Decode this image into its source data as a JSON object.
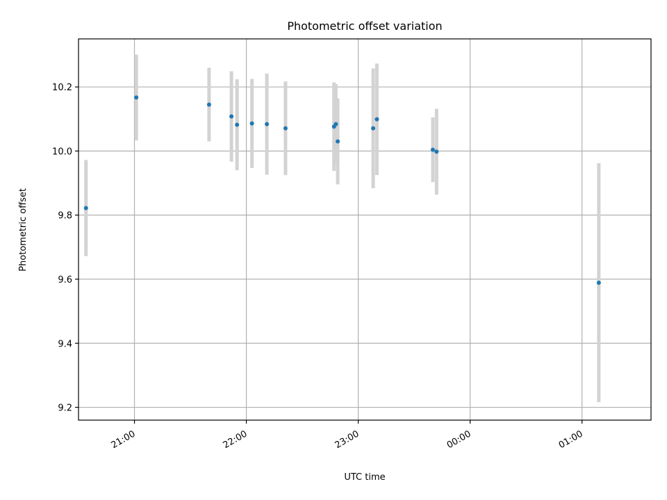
{
  "chart_data": {
    "type": "scatter",
    "title": "Photometric offset variation",
    "xlabel": "UTC time",
    "ylabel": "Photometric offset",
    "x_is_time": true,
    "xlim": [
      "20:30",
      "01:37"
    ],
    "ylim": [
      9.16,
      10.35
    ],
    "x_ticks": [
      "21:00",
      "22:00",
      "23:00",
      "00:00",
      "01:00"
    ],
    "y_ticks": [
      "9.2",
      "9.4",
      "9.6",
      "9.8",
      "10.0",
      "10.2"
    ],
    "grid": true,
    "colors": {
      "point": "#1f77b4",
      "errorbar": "#d3d3d3",
      "grid": "#b0b0b0"
    },
    "points": [
      {
        "time": "20:34",
        "y": 9.822,
        "yerr": 0.15
      },
      {
        "time": "21:01",
        "y": 10.167,
        "yerr": 0.134
      },
      {
        "time": "21:40",
        "y": 10.145,
        "yerr": 0.115
      },
      {
        "time": "21:52",
        "y": 10.108,
        "yerr": 0.141
      },
      {
        "time": "21:55",
        "y": 10.082,
        "yerr": 0.142
      },
      {
        "time": "22:03",
        "y": 10.086,
        "yerr": 0.139
      },
      {
        "time": "22:11",
        "y": 10.084,
        "yerr": 0.158
      },
      {
        "time": "22:21",
        "y": 10.071,
        "yerr": 0.146
      },
      {
        "time": "22:47",
        "y": 10.076,
        "yerr": 0.138
      },
      {
        "time": "22:48",
        "y": 10.084,
        "yerr": 0.125
      },
      {
        "time": "22:49",
        "y": 10.03,
        "yerr": 0.134
      },
      {
        "time": "23:08",
        "y": 10.071,
        "yerr": 0.187
      },
      {
        "time": "23:10",
        "y": 10.099,
        "yerr": 0.174
      },
      {
        "time": "23:40",
        "y": 10.004,
        "yerr": 0.101
      },
      {
        "time": "23:42",
        "y": 9.998,
        "yerr": 0.134
      },
      {
        "time": "01:09",
        "y": 9.589,
        "yerr": 0.373
      }
    ]
  }
}
